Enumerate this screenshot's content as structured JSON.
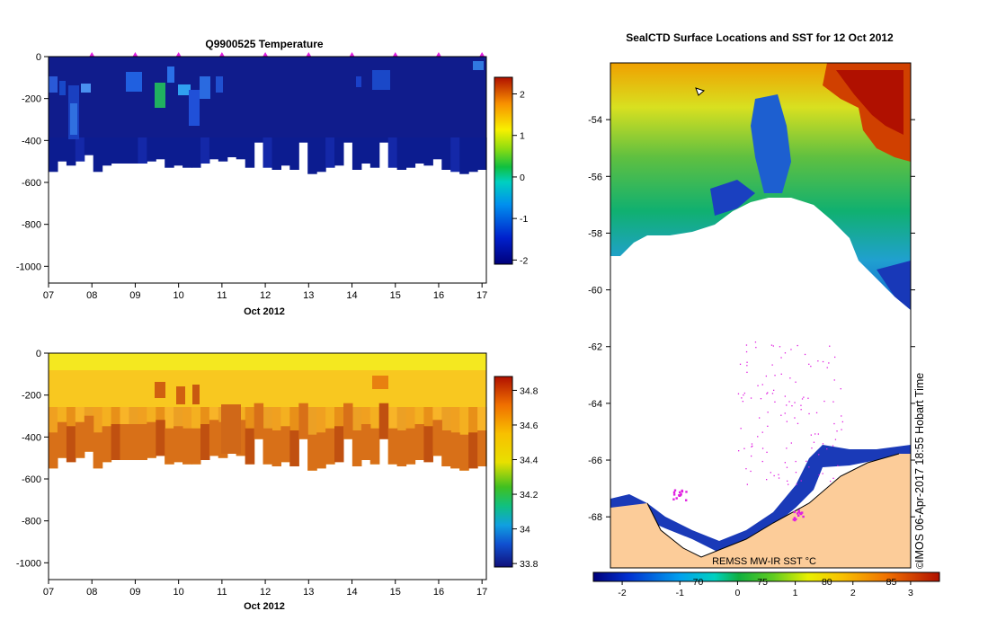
{
  "chart_data": [
    {
      "type": "heatmap",
      "title": "Q9900525  Temperature",
      "xlabel": "Oct 2012",
      "ylabel": "",
      "x_ticks": [
        "07",
        "08",
        "09",
        "10",
        "11",
        "12",
        "13",
        "14",
        "15",
        "16",
        "17"
      ],
      "x_values": [
        7,
        8,
        9,
        10,
        11,
        12,
        13,
        14,
        15,
        16,
        17
      ],
      "xlim": [
        7,
        17.1
      ],
      "y_ticks": [
        0,
        -200,
        -400,
        -600,
        -800,
        -1000
      ],
      "ylim": [
        -1080,
        0
      ],
      "profile_marker_days": [
        8,
        9,
        10,
        11,
        12,
        13,
        14,
        15,
        16,
        17
      ],
      "colorbar": {
        "ticks": [
          2,
          1,
          0,
          -1,
          -2
        ],
        "range": [
          -2.1,
          2.4
        ]
      },
      "profile_bottom_depths_m": [
        550,
        500,
        520,
        500,
        470,
        550,
        520,
        510,
        510,
        510,
        510,
        500,
        490,
        530,
        520,
        530,
        530,
        510,
        490,
        500,
        480,
        490,
        530,
        410,
        530,
        540,
        520,
        540,
        410,
        560,
        550,
        530,
        520,
        410,
        540,
        510,
        530,
        410,
        530,
        540,
        530,
        510,
        520,
        490,
        540,
        550,
        560,
        550,
        540
      ]
    },
    {
      "type": "heatmap",
      "title": "",
      "xlabel": "Oct 2012",
      "ylabel": "",
      "x_ticks": [
        "07",
        "08",
        "09",
        "10",
        "11",
        "12",
        "13",
        "14",
        "15",
        "16",
        "17"
      ],
      "x_values": [
        7,
        8,
        9,
        10,
        11,
        12,
        13,
        14,
        15,
        16,
        17
      ],
      "xlim": [
        7,
        17.1
      ],
      "y_ticks": [
        0,
        -200,
        -400,
        -600,
        -800,
        -1000
      ],
      "ylim": [
        -1080,
        0
      ],
      "colorbar": {
        "ticks": [
          34.8,
          34.6,
          34.4,
          34.2,
          34,
          33.8
        ],
        "range": [
          33.78,
          34.88
        ]
      },
      "profile_bottom_depths_m": [
        550,
        500,
        520,
        500,
        470,
        550,
        520,
        510,
        510,
        510,
        510,
        500,
        490,
        530,
        520,
        530,
        530,
        510,
        490,
        500,
        480,
        490,
        530,
        410,
        530,
        540,
        520,
        540,
        410,
        560,
        550,
        530,
        520,
        410,
        540,
        510,
        530,
        410,
        530,
        540,
        530,
        510,
        520,
        490,
        540,
        550,
        560,
        550,
        540
      ]
    },
    {
      "type": "heatmap",
      "title": "SealCTD Surface Locations and SST for 12 Oct 2012",
      "y_ticks": [
        "-54",
        "-56",
        "-58",
        "-60",
        "-62",
        "-64",
        "-66",
        "-68"
      ],
      "ylim": [
        -69.8,
        -52.0
      ],
      "xlim": [
        63.2,
        86.5
      ],
      "colorbar": {
        "label": "REMSS MW-IR SST °C",
        "ticks": [
          "-2",
          "-1",
          "0",
          "1",
          "2",
          "3"
        ],
        "tick_values": [
          -2,
          -1,
          0,
          1,
          2,
          3
        ],
        "range": [
          -2.5,
          3.5
        ]
      },
      "longitude_labels": [
        "70",
        "75",
        "80",
        "85"
      ],
      "longitude_values": [
        70,
        75,
        80,
        85
      ],
      "seal_location_clusters": [
        {
          "lon": 68.5,
          "lat": -67.2
        },
        {
          "lon": 77.8,
          "lat": -67.9
        }
      ]
    }
  ],
  "stamp": "IMOS 06-Apr-2017 18:55 Hobart Time",
  "copyright": "©",
  "colors": {
    "seal_locations": "#e020e0",
    "land": "#fccc99",
    "marker": "#e020e0"
  }
}
